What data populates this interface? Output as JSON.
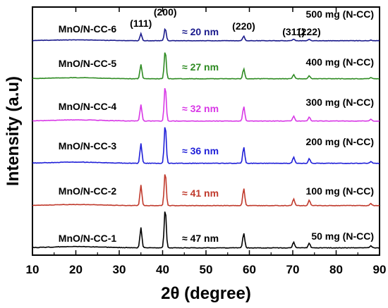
{
  "chart_data": {
    "type": "line",
    "xlabel": "2θ (degree)",
    "ylabel": "Intensity (a.u)",
    "xlim": [
      10,
      90
    ],
    "x_ticks": [
      "10",
      "20",
      "30",
      "40",
      "50",
      "60",
      "70",
      "80",
      "90"
    ],
    "peak_labels": [
      {
        "text": "(111)",
        "x": 35.0
      },
      {
        "text": "(200)",
        "x": 40.6
      },
      {
        "text": "(220)",
        "x": 58.7
      },
      {
        "text": "(311)",
        "x": 70.2
      },
      {
        "text": "(222)",
        "x": 73.8
      }
    ],
    "series": [
      {
        "name": "MnO/N-CC-1",
        "mass": "50 mg (N-CC)",
        "crystallite": "≈ 47 nm",
        "color": "#000000",
        "peaks": [
          [
            35.0,
            0.48
          ],
          [
            40.6,
            0.95
          ],
          [
            58.7,
            0.35
          ],
          [
            70.2,
            0.14
          ],
          [
            73.8,
            0.11
          ],
          [
            88.0,
            0.05
          ]
        ]
      },
      {
        "name": "MnO/N-CC-2",
        "mass": "100 mg (N-CC)",
        "crystallite": "≈ 41 nm",
        "color": "#c0392b",
        "peaks": [
          [
            35.0,
            0.58
          ],
          [
            40.6,
            0.98
          ],
          [
            58.7,
            0.5
          ],
          [
            70.2,
            0.19
          ],
          [
            73.8,
            0.15
          ],
          [
            88.0,
            0.06
          ]
        ]
      },
      {
        "name": "MnO/N-CC-3",
        "mass": "200 mg (N-CC)",
        "crystallite": "≈ 36 nm",
        "color": "#1f1fd8",
        "peaks": [
          [
            35.0,
            0.5
          ],
          [
            40.6,
            1.0
          ],
          [
            58.7,
            0.42
          ],
          [
            70.2,
            0.16
          ],
          [
            73.8,
            0.12
          ],
          [
            88.0,
            0.05
          ]
        ]
      },
      {
        "name": "MnO/N-CC-4",
        "mass": "300 mg (N-CC)",
        "crystallite": "≈ 32 nm",
        "color": "#d838e6",
        "peaks": [
          [
            35.0,
            0.45
          ],
          [
            40.6,
            0.98
          ],
          [
            58.7,
            0.4
          ],
          [
            70.2,
            0.14
          ],
          [
            73.8,
            0.11
          ],
          [
            88.0,
            0.05
          ]
        ]
      },
      {
        "name": "MnO/N-CC-5",
        "mass": "400 mg (N-CC)",
        "crystallite": "≈ 27 nm",
        "color": "#2e8b22",
        "peaks": [
          [
            35.0,
            0.42
          ],
          [
            40.6,
            0.85
          ],
          [
            58.7,
            0.3
          ],
          [
            70.2,
            0.12
          ],
          [
            73.8,
            0.09
          ],
          [
            88.0,
            0.04
          ]
        ]
      },
      {
        "name": "MnO/N-CC-6",
        "mass": "500 mg (N-CC)",
        "crystallite": "≈ 20 nm",
        "color": "#1a1a8c",
        "peaks": [
          [
            35.0,
            0.25
          ],
          [
            40.6,
            0.45
          ],
          [
            58.7,
            0.17
          ],
          [
            70.2,
            0.06
          ],
          [
            73.8,
            0.05
          ],
          [
            88.0,
            0.02
          ]
        ]
      }
    ]
  }
}
